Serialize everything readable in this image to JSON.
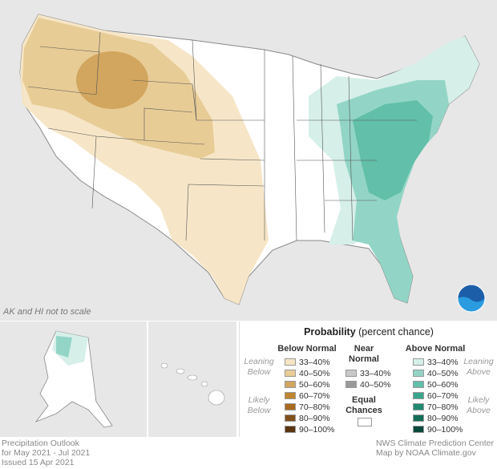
{
  "map": {
    "note": "AK and HI not to scale",
    "colors": {
      "land": "#ffffff",
      "outside": "#e7e7e7",
      "borders": "#555555",
      "below_33_40": "#f6e5c4",
      "below_40_50": "#e8cc96",
      "below_50_60": "#d2a65f",
      "above_33_40": "#d6efe9",
      "above_40_50": "#92d5c6",
      "above_50_60": "#62bfa9"
    }
  },
  "legend": {
    "title_bold": "Probability",
    "title_rest": " (percent chance)",
    "below_normal": "Below Normal",
    "near_normal_1": "Near",
    "near_normal_2": "Normal",
    "above_normal": "Above Normal",
    "leaning_below_1": "Leaning",
    "leaning_below_2": "Below",
    "likely_below_1": "Likely",
    "likely_below_2": "Below",
    "leaning_above_1": "Leaning",
    "leaning_above_2": "Above",
    "likely_above_1": "Likely",
    "likely_above_2": "Above",
    "equal_1": "Equal",
    "equal_2": "Chances",
    "below_items": [
      {
        "label": "33–40%",
        "color": "#f6e5c4"
      },
      {
        "label": "40–50%",
        "color": "#e8cc96"
      },
      {
        "label": "50–60%",
        "color": "#d2a65f"
      },
      {
        "label": "60–70%",
        "color": "#c08531"
      },
      {
        "label": "70–80%",
        "color": "#a86a1c"
      },
      {
        "label": "80–90%",
        "color": "#80501b"
      },
      {
        "label": "90–100%",
        "color": "#5a3510"
      }
    ],
    "near_items": [
      {
        "label": "33–40%",
        "color": "#c8c8c8"
      },
      {
        "label": "40–50%",
        "color": "#9a9a9a"
      }
    ],
    "above_items": [
      {
        "label": "33–40%",
        "color": "#d6efe9"
      },
      {
        "label": "40–50%",
        "color": "#92d5c6"
      },
      {
        "label": "50–60%",
        "color": "#62bfa9"
      },
      {
        "label": "60–70%",
        "color": "#3aa58d"
      },
      {
        "label": "70–80%",
        "color": "#1f8a72"
      },
      {
        "label": "80–90%",
        "color": "#126e59"
      },
      {
        "label": "90–100%",
        "color": "#0a4a3c"
      }
    ]
  },
  "footer": {
    "left_1": "Precipitation Outlook",
    "left_2": "for May 2021 - Jul 2021",
    "left_3": "Issued 15 Apr 2021",
    "right_1": "NWS Climate Prediction Center",
    "right_2": "Map by NOAA Climate.gov"
  }
}
